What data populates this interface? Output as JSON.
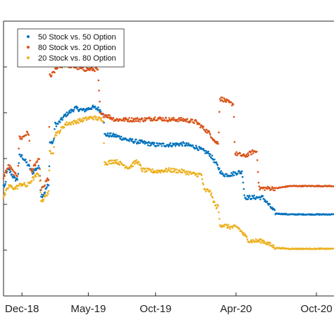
{
  "chart_data": {
    "type": "scatter",
    "title": "",
    "xlabel": "",
    "ylabel": "",
    "x_tick_labels": [
      "Dec-18",
      "May-19",
      "Oct-19",
      "Apr-20",
      "Oct-20"
    ],
    "x_tick_dates": [
      "2018-12-01",
      "2019-05-01",
      "2019-10-01",
      "2020-04-01",
      "2020-10-01"
    ],
    "x_range": [
      "2018-10-20",
      "2020-11-10"
    ],
    "y_range": [
      0,
      6
    ],
    "y_tick_values": [
      1,
      2,
      3,
      4,
      5
    ],
    "y_tick_labels_visible": false,
    "grid": false,
    "legend_position": "top-left",
    "series": [
      {
        "name": "50 Stock vs. 50 Option",
        "color": "#0072BD",
        "points": [
          [
            "2018-10-20",
            2.4
          ],
          [
            "2018-11-01",
            2.75
          ],
          [
            "2018-11-15",
            2.55
          ],
          [
            "2018-12-01",
            3.05
          ],
          [
            "2018-12-12",
            2.9
          ],
          [
            "2018-12-25",
            2.7
          ],
          [
            "2019-01-05",
            2.8
          ],
          [
            "2019-01-18",
            2.2
          ],
          [
            "2019-01-28",
            2.4
          ],
          [
            "2019-02-05",
            3.35
          ],
          [
            "2019-02-20",
            3.75
          ],
          [
            "2019-03-10",
            3.95
          ],
          [
            "2019-04-01",
            4.1
          ],
          [
            "2019-04-20",
            4.05
          ],
          [
            "2019-05-10",
            4.12
          ],
          [
            "2019-05-25",
            4.08
          ],
          [
            "2019-06-01",
            4.0
          ],
          [
            "2019-06-10",
            3.52
          ],
          [
            "2019-07-01",
            3.5
          ],
          [
            "2019-08-01",
            3.4
          ],
          [
            "2019-09-01",
            3.35
          ],
          [
            "2019-10-01",
            3.3
          ],
          [
            "2019-11-01",
            3.3
          ],
          [
            "2019-12-01",
            3.32
          ],
          [
            "2020-01-01",
            3.25
          ],
          [
            "2020-02-01",
            3.1
          ],
          [
            "2020-02-15",
            2.9
          ],
          [
            "2020-03-01",
            2.65
          ],
          [
            "2020-03-20",
            2.65
          ],
          [
            "2020-04-05",
            2.7
          ],
          [
            "2020-05-01",
            2.15
          ],
          [
            "2020-06-01",
            2.15
          ],
          [
            "2020-07-01",
            1.8
          ],
          [
            "2020-08-01",
            1.78
          ],
          [
            "2020-09-01",
            1.78
          ],
          [
            "2020-10-01",
            1.78
          ],
          [
            "2020-11-10",
            1.78
          ]
        ]
      },
      {
        "name": "80 Stock vs. 20 Option",
        "color": "#D95319",
        "points": [
          [
            "2018-10-20",
            2.6
          ],
          [
            "2018-11-01",
            2.85
          ],
          [
            "2018-11-15",
            2.65
          ],
          [
            "2018-12-01",
            3.45
          ],
          [
            "2018-12-12",
            3.55
          ],
          [
            "2018-12-25",
            2.75
          ],
          [
            "2019-01-05",
            2.95
          ],
          [
            "2019-01-18",
            2.35
          ],
          [
            "2019-01-28",
            2.55
          ],
          [
            "2019-02-05",
            4.8
          ],
          [
            "2019-02-20",
            5.0
          ],
          [
            "2019-03-10",
            5.05
          ],
          [
            "2019-04-01",
            5.0
          ],
          [
            "2019-04-20",
            4.95
          ],
          [
            "2019-05-10",
            4.95
          ],
          [
            "2019-06-10",
            3.95
          ],
          [
            "2019-07-01",
            3.85
          ],
          [
            "2019-08-01",
            3.85
          ],
          [
            "2019-09-01",
            3.85
          ],
          [
            "2019-10-01",
            3.88
          ],
          [
            "2019-11-01",
            3.85
          ],
          [
            "2019-12-01",
            3.85
          ],
          [
            "2020-01-01",
            3.8
          ],
          [
            "2020-02-01",
            3.55
          ],
          [
            "2020-02-15",
            3.35
          ],
          [
            "2020-03-01",
            4.3
          ],
          [
            "2020-03-20",
            4.2
          ],
          [
            "2020-04-05",
            3.1
          ],
          [
            "2020-04-20",
            3.05
          ],
          [
            "2020-05-10",
            3.15
          ],
          [
            "2020-06-01",
            2.35
          ],
          [
            "2020-07-01",
            2.35
          ],
          [
            "2020-08-01",
            2.4
          ],
          [
            "2020-09-01",
            2.4
          ],
          [
            "2020-10-01",
            2.4
          ],
          [
            "2020-11-10",
            2.4
          ]
        ]
      },
      {
        "name": "20 Stock vs. 80 Option",
        "color": "#EDB120",
        "points": [
          [
            "2018-10-20",
            2.15
          ],
          [
            "2018-11-01",
            2.4
          ],
          [
            "2018-11-15",
            2.35
          ],
          [
            "2018-12-01",
            2.45
          ],
          [
            "2018-12-12",
            2.4
          ],
          [
            "2018-12-25",
            2.55
          ],
          [
            "2019-01-05",
            2.65
          ],
          [
            "2019-01-18",
            2.1
          ],
          [
            "2019-01-28",
            2.25
          ],
          [
            "2019-02-05",
            3.15
          ],
          [
            "2019-02-20",
            3.55
          ],
          [
            "2019-03-10",
            3.75
          ],
          [
            "2019-04-01",
            3.8
          ],
          [
            "2019-04-20",
            3.85
          ],
          [
            "2019-05-10",
            3.9
          ],
          [
            "2019-06-01",
            3.85
          ],
          [
            "2019-06-10",
            2.9
          ],
          [
            "2019-07-01",
            2.95
          ],
          [
            "2019-08-01",
            2.8
          ],
          [
            "2019-08-20",
            2.95
          ],
          [
            "2019-09-01",
            2.75
          ],
          [
            "2019-10-01",
            2.72
          ],
          [
            "2019-11-01",
            2.75
          ],
          [
            "2019-12-01",
            2.72
          ],
          [
            "2020-01-01",
            2.65
          ],
          [
            "2020-02-01",
            2.3
          ],
          [
            "2020-02-15",
            1.95
          ],
          [
            "2020-03-01",
            1.55
          ],
          [
            "2020-03-20",
            1.5
          ],
          [
            "2020-04-05",
            1.5
          ],
          [
            "2020-05-01",
            1.2
          ],
          [
            "2020-06-01",
            1.2
          ],
          [
            "2020-07-01",
            1.05
          ],
          [
            "2020-08-01",
            1.03
          ],
          [
            "2020-09-01",
            1.03
          ],
          [
            "2020-10-01",
            1.03
          ],
          [
            "2020-11-10",
            1.03
          ]
        ]
      }
    ]
  }
}
